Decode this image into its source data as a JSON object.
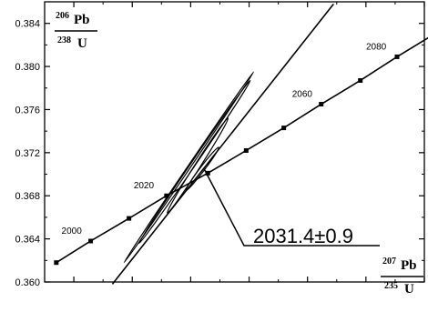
{
  "chart_data": {
    "type": "scatter",
    "title": "",
    "x_axis": {
      "numerator_mass": "207",
      "numerator_element": "Pb",
      "denominator_mass": "235",
      "denominator_element": "U",
      "range": [
        6.275,
        6.6
      ]
    },
    "y_axis": {
      "numerator_mass": "206",
      "numerator_element": "Pb",
      "denominator_mass": "238",
      "denominator_element": "U",
      "range": [
        0.36,
        0.386
      ],
      "ticks": [
        "0.360",
        "0.364",
        "0.368",
        "0.372",
        "0.376",
        "0.380",
        "0.384"
      ],
      "tick_values": [
        0.36,
        0.364,
        0.368,
        0.372,
        0.376,
        0.38,
        0.384
      ]
    },
    "concordia": {
      "age_ticks_ma": [
        1990,
        2000,
        2010,
        2020,
        2030,
        2040,
        2050,
        2060,
        2070,
        2080,
        2090
      ],
      "x": [
        6.285,
        6.3144,
        6.3472,
        6.3793,
        6.4147,
        6.4475,
        6.4797,
        6.5117,
        6.5452,
        6.5766,
        6.6084
      ],
      "y": [
        0.3618,
        0.3638,
        0.3659,
        0.368,
        0.3701,
        0.3722,
        0.3743,
        0.3765,
        0.3787,
        0.3809,
        0.383
      ],
      "labeled_ages": [
        {
          "age": 2000,
          "text": "2000"
        },
        {
          "age": 2020,
          "text": "2020"
        },
        {
          "age": 2060,
          "text": "2060"
        },
        {
          "age": 2080,
          "text": "2080"
        }
      ]
    },
    "discordia": {
      "x": [
        6.333,
        6.5223
      ],
      "y": [
        0.3598,
        0.3858
      ]
    },
    "error_ellipses": [
      {
        "x1": 6.343,
        "y1": 0.3618,
        "x2": 6.4539,
        "y2": 0.3795,
        "width": 3
      },
      {
        "x1": 6.356,
        "y1": 0.3636,
        "x2": 6.451,
        "y2": 0.3787,
        "width": 5
      },
      {
        "x1": 6.38,
        "y1": 0.3664,
        "x2": 6.432,
        "y2": 0.3752,
        "width": 6
      },
      {
        "x1": 6.396,
        "y1": 0.3685,
        "x2": 6.424,
        "y2": 0.3725,
        "width": 5
      }
    ],
    "intercept": {
      "x": 6.4115,
      "y": 0.3705
    },
    "result_label": "2031.4±0.9"
  }
}
